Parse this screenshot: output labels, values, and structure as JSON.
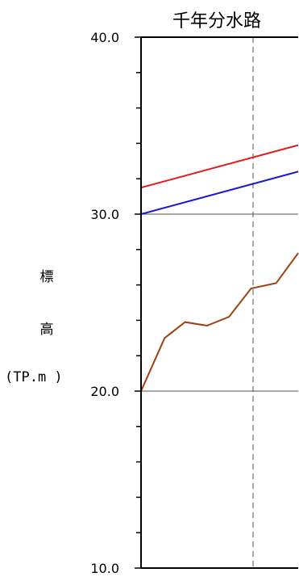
{
  "chart_data": {
    "type": "line",
    "title": "千年分水路",
    "ylabel_chars": [
      "標",
      "高"
    ],
    "ylabel_unit": "(TP.m )",
    "ylim": [
      10.0,
      40.0
    ],
    "yticks": [
      "10.0",
      "20.0",
      "30.0",
      "40.0"
    ],
    "y_minor_step": 2,
    "gridlines_y": [
      20.0,
      30.0
    ],
    "marker_x": 0.713,
    "series": [
      {
        "color": "#e41a1a",
        "x": [
          0,
          1
        ],
        "y": [
          31.5,
          33.9
        ]
      },
      {
        "color": "#1a1ad4",
        "x": [
          0,
          1
        ],
        "y": [
          30.0,
          32.4
        ]
      },
      {
        "color": "#a0400e",
        "x": [
          0,
          0.15,
          0.28,
          0.42,
          0.56,
          0.7,
          0.86,
          1.0
        ],
        "y": [
          20.0,
          23.0,
          23.9,
          23.7,
          24.2,
          25.8,
          26.1,
          27.8
        ]
      }
    ]
  }
}
